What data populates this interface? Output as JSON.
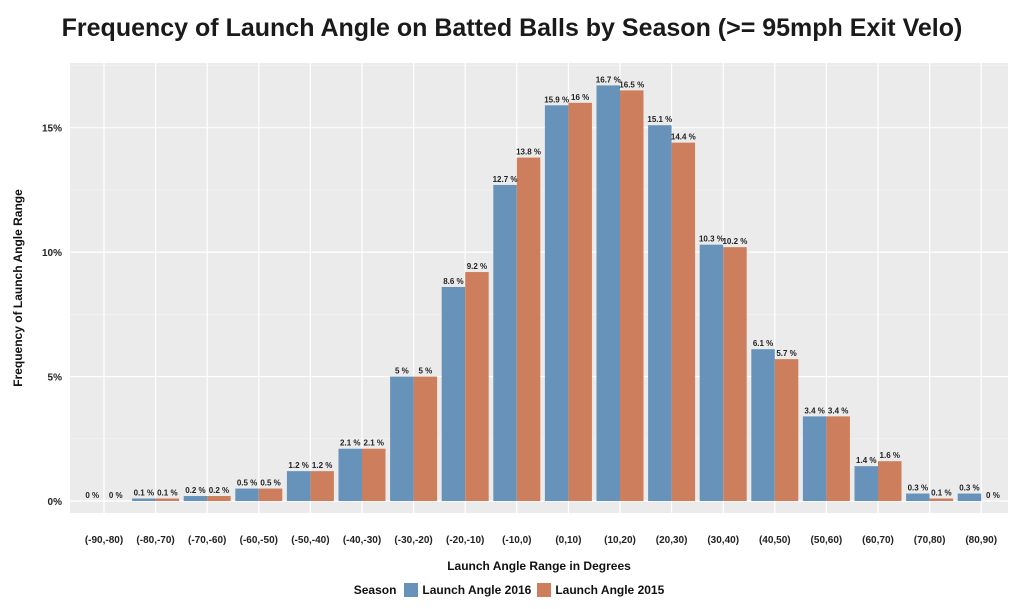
{
  "chart_data": {
    "type": "bar",
    "title": "Frequency of Launch Angle on Batted Balls by Season (>= 95mph Exit Velo)",
    "xlabel": "Launch Angle Range in Degrees",
    "ylabel": "Frequency of Launch Angle Range",
    "ylim": [
      0,
      17.6
    ],
    "yticks": [
      {
        "value": 0,
        "label": "0%"
      },
      {
        "value": 5,
        "label": "5%"
      },
      {
        "value": 10,
        "label": "10%"
      },
      {
        "value": 15,
        "label": "15%"
      }
    ],
    "grid": true,
    "legend_position": "bottom",
    "legend_title": "Season",
    "categories": [
      "(-90,-80)",
      "(-80,-70)",
      "(-70,-60)",
      "(-60,-50)",
      "(-50,-40)",
      "(-40,-30)",
      "(-30,-20)",
      "(-20,-10)",
      "(-10,0)",
      "(0,10)",
      "(10,20)",
      "(20,30)",
      "(30,40)",
      "(40,50)",
      "(50,60)",
      "(60,70)",
      "(70,80)",
      "(80,90)"
    ],
    "series": [
      {
        "name": "Launch Angle 2016",
        "color": "#6793bb",
        "values": [
          0,
          0.1,
          0.2,
          0.5,
          1.2,
          2.1,
          5,
          8.6,
          12.7,
          15.9,
          16.7,
          15.1,
          10.3,
          6.1,
          3.4,
          1.4,
          0.3,
          0.3
        ],
        "labels": [
          "0 %",
          "0.1 %",
          "0.2 %",
          "0.5 %",
          "1.2 %",
          "2.1 %",
          "5 %",
          "8.6 %",
          "12.7 %",
          "15.9 %",
          "16.7 %",
          "15.1 %",
          "10.3 %",
          "6.1 %",
          "3.4 %",
          "1.4 %",
          "0.3 %",
          "0.3 %"
        ]
      },
      {
        "name": "Launch Angle 2015",
        "color": "#cd7f5d",
        "values": [
          0,
          0.1,
          0.2,
          0.5,
          1.2,
          2.1,
          5,
          9.2,
          13.8,
          16,
          16.5,
          14.4,
          10.2,
          5.7,
          3.4,
          1.6,
          0.1,
          0
        ],
        "labels": [
          "0 %",
          "0.1 %",
          "0.2 %",
          "0.5 %",
          "1.2 %",
          "2.1 %",
          "5 %",
          "9.2 %",
          "13.8 %",
          "16 %",
          "16.5 %",
          "14.4 %",
          "10.2 %",
          "5.7 %",
          "3.4 %",
          "1.6 %",
          "0.1 %",
          "0 %"
        ]
      }
    ]
  }
}
